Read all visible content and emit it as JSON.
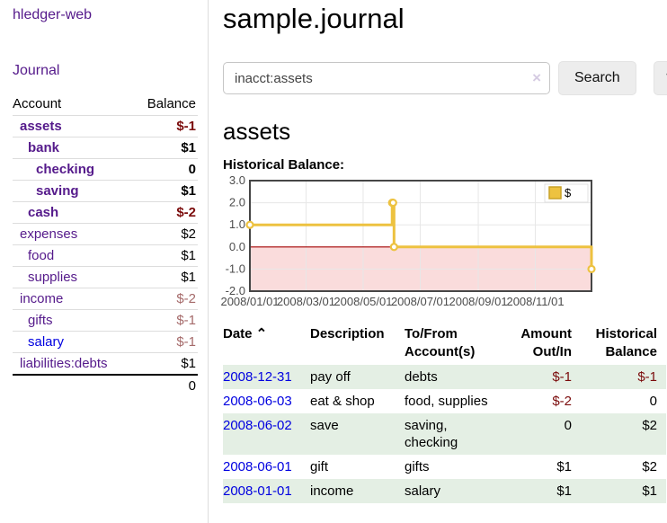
{
  "colors": {
    "link_purple": "#551a8b",
    "link_blue": "#0000e0",
    "negative": "#7b0c0c",
    "negative_dim": "#a56a6a",
    "row_shade": "#e4efe4",
    "chart_line": "#edc240",
    "chart_marker_fill": "#ffffff",
    "chart_zero_line": "#a40000",
    "chart_negative_fill": "#fadcdc",
    "chart_grid": "#e7e7e7",
    "chart_border": "#464646",
    "chart_tick_text": "#4d4d4d"
  },
  "sidebar": {
    "brand": "hledger-web",
    "journal_link": "Journal",
    "accounts_table": {
      "headers": {
        "account": "Account",
        "balance": "Balance"
      },
      "rows": [
        {
          "name": "assets",
          "indent": 1,
          "bold": true,
          "balance": "$-1",
          "balance_style": "neg"
        },
        {
          "name": "bank",
          "indent": 2,
          "bold": true,
          "balance": "$1",
          "balance_style": "pos"
        },
        {
          "name": "checking",
          "indent": 3,
          "bold": true,
          "balance": "0",
          "balance_style": "pos"
        },
        {
          "name": "saving",
          "indent": 3,
          "bold": true,
          "balance": "$1",
          "balance_style": "pos"
        },
        {
          "name": "cash",
          "indent": 2,
          "bold": true,
          "balance": "$-2",
          "balance_style": "neg"
        },
        {
          "name": "expenses",
          "indent": 1,
          "bold": false,
          "balance": "$2",
          "balance_style": "pos"
        },
        {
          "name": "food",
          "indent": 2,
          "bold": false,
          "balance": "$1",
          "balance_style": "pos"
        },
        {
          "name": "supplies",
          "indent": 2,
          "bold": false,
          "balance": "$1",
          "balance_style": "pos"
        },
        {
          "name": "income",
          "indent": 1,
          "bold": false,
          "balance": "$-2",
          "balance_style": "dim-neg"
        },
        {
          "name": "gifts",
          "indent": 2,
          "bold": false,
          "balance": "$-1",
          "balance_style": "dim-neg"
        },
        {
          "name": "salary",
          "indent": 2,
          "bold": false,
          "balance": "$-1",
          "balance_style": "dim-neg",
          "link_style": "blue"
        },
        {
          "name": "liabilities:debts",
          "indent": 1,
          "bold": false,
          "balance": "$1",
          "balance_style": "pos"
        }
      ],
      "total": "0"
    }
  },
  "main": {
    "title": "sample.journal",
    "search": {
      "value": "inacct:assets",
      "clear_icon": "×",
      "search_button": "Search",
      "help_button": "?"
    },
    "account_heading": "assets",
    "chart_label": "Historical Balance:"
  },
  "chart_data": {
    "type": "line",
    "step": "post",
    "title": "Historical Balance",
    "series": [
      {
        "name": "$",
        "points": [
          [
            "2008-01-01",
            1
          ],
          [
            "2008-06-01",
            2
          ],
          [
            "2008-06-02",
            2
          ],
          [
            "2008-06-03",
            0
          ],
          [
            "2008-12-31",
            -1
          ]
        ]
      }
    ],
    "xlim": [
      "2008-01-01",
      "2008-12-31"
    ],
    "ylim": [
      -2,
      3
    ],
    "y_ticks": [
      "3.0",
      "2.0",
      "1.0",
      "0.0",
      "-1.0",
      "-2.0"
    ],
    "x_ticks": [
      {
        "label": "2008/01/01",
        "date": "2008-01-01"
      },
      {
        "label": "2008/03/01",
        "date": "2008-03-01"
      },
      {
        "label": "2008/05/01",
        "date": "2008-05-01"
      },
      {
        "label": "2008/07/01",
        "date": "2008-07-01"
      },
      {
        "label": "2008/09/01",
        "date": "2008-09-01"
      },
      {
        "label": "2008/11/01",
        "date": "2008-11-01"
      }
    ],
    "legend": {
      "label": "$",
      "position": "top-right"
    },
    "grid": true,
    "negative_region_shaded": true
  },
  "transactions": {
    "headers": [
      {
        "text": "Date",
        "sort_icon": "⌃",
        "align": "left"
      },
      {
        "text": "Description",
        "align": "left"
      },
      {
        "text": "To/From\nAccount(s)",
        "align": "left"
      },
      {
        "text": "Amount\nOut/In",
        "align": "right"
      },
      {
        "text": "Historical\nBalance",
        "align": "right"
      }
    ],
    "rows": [
      {
        "date": "2008-12-31",
        "description": "pay off",
        "accounts": "debts",
        "amount": "$-1",
        "amount_style": "neg",
        "balance": "$-1",
        "balance_style": "neg",
        "shaded": true
      },
      {
        "date": "2008-06-03",
        "description": "eat & shop",
        "accounts": "food, supplies",
        "amount": "$-2",
        "amount_style": "neg",
        "balance": "0",
        "balance_style": "pos",
        "shaded": false
      },
      {
        "date": "2008-06-02",
        "description": "save",
        "accounts": "saving, checking",
        "amount": "0",
        "amount_style": "pos",
        "balance": "$2",
        "balance_style": "pos",
        "shaded": true
      },
      {
        "date": "2008-06-01",
        "description": "gift",
        "accounts": "gifts",
        "amount": "$1",
        "amount_style": "pos",
        "balance": "$2",
        "balance_style": "pos",
        "shaded": false
      },
      {
        "date": "2008-01-01",
        "description": "income",
        "accounts": "salary",
        "amount": "$1",
        "amount_style": "pos",
        "balance": "$1",
        "balance_style": "pos",
        "shaded": true
      }
    ]
  }
}
